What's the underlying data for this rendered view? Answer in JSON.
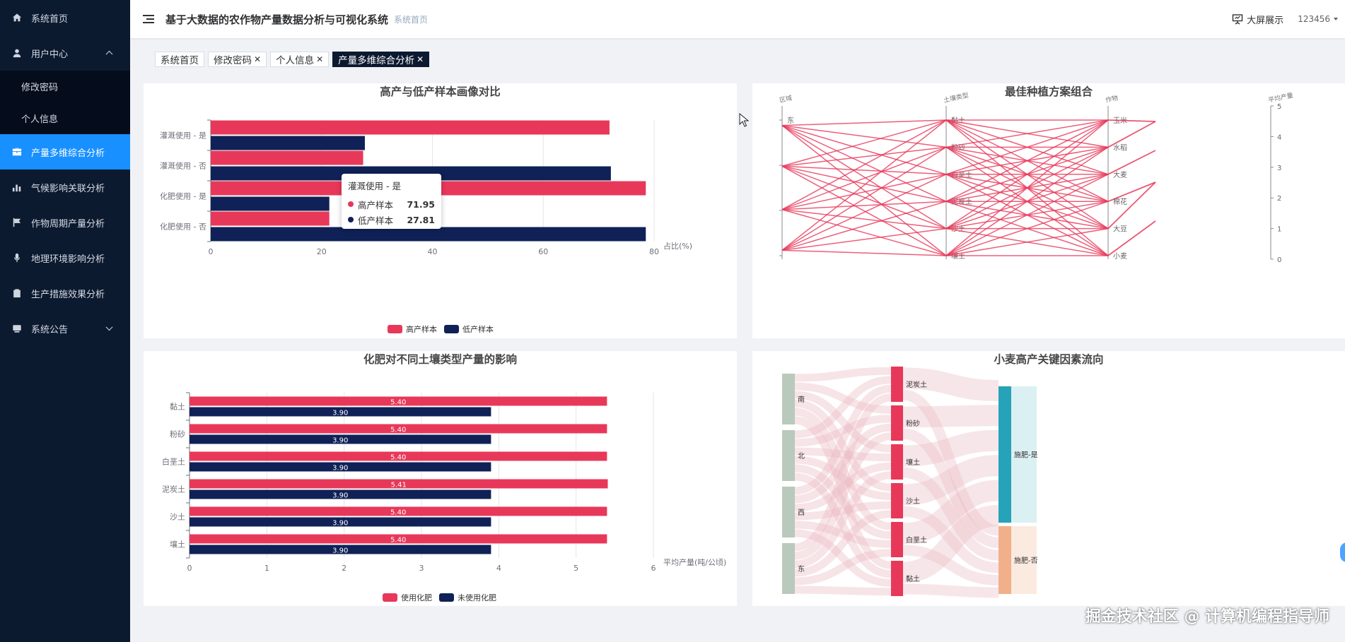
{
  "app": {
    "title": "基于大数据的农作物产量数据分析与可视化系统",
    "breadcrumb": "系统首页"
  },
  "header": {
    "big_screen_label": "大屏展示",
    "username": "123456"
  },
  "sidebar": {
    "items": [
      {
        "label": "系统首页",
        "icon": "home-icon"
      },
      {
        "label": "用户中心",
        "icon": "user-icon",
        "expanded": true,
        "children": [
          {
            "label": "修改密码"
          },
          {
            "label": "个人信息"
          }
        ]
      },
      {
        "label": "产量多维综合分析",
        "icon": "briefcase-icon",
        "active": true
      },
      {
        "label": "气候影响关联分析",
        "icon": "bar-chart-icon"
      },
      {
        "label": "作物周期产量分析",
        "icon": "flag-icon"
      },
      {
        "label": "地理环境影响分析",
        "icon": "microphone-icon"
      },
      {
        "label": "生产措施效果分析",
        "icon": "clipboard-icon"
      },
      {
        "label": "系统公告",
        "icon": "announcement-icon"
      }
    ]
  },
  "tabs": [
    {
      "label": "系统首页",
      "closable": false,
      "active": false
    },
    {
      "label": "修改密码",
      "closable": true,
      "active": false
    },
    {
      "label": "个人信息",
      "closable": true,
      "active": false
    },
    {
      "label": "产量多维综合分析",
      "closable": true,
      "active": true
    }
  ],
  "colors": {
    "red": "#e8385a",
    "navy": "#0f2156",
    "sidebar_bg": "#0c1a30",
    "active_blue": "#1890ff"
  },
  "charts": {
    "c1": {
      "title": "高产与低产样本画像对比",
      "tooltip": {
        "title": "灌溉使用 - 是",
        "rows": [
          {
            "name": "高产样本",
            "value": "71.95"
          },
          {
            "name": "低产样本",
            "value": "27.81"
          }
        ]
      }
    },
    "c2": {
      "title": "最佳种植方案组合"
    },
    "c3": {
      "title": "化肥对不同土壤类型产量的影响"
    },
    "c4": {
      "title": "小麦高产关键因素流向"
    }
  },
  "chart_data": [
    {
      "type": "bar",
      "orientation": "horizontal",
      "title": "高产与低产样本画像对比",
      "categories": [
        "灌溉使用 - 是",
        "灌溉使用 - 否",
        "化肥使用 - 是",
        "化肥使用 - 否"
      ],
      "series": [
        {
          "name": "高产样本",
          "values": [
            71.95,
            27.5,
            78.5,
            21.4
          ]
        },
        {
          "name": "低产样本",
          "values": [
            27.81,
            72.2,
            21.4,
            78.5
          ]
        }
      ],
      "xlabel": "占比(%)",
      "x_ticks": [
        "0",
        "20",
        "40",
        "60",
        "80"
      ],
      "xlim": [
        0,
        80
      ],
      "legend": "bottom-center"
    },
    {
      "type": "parallel",
      "title": "最佳种植方案组合",
      "axes": [
        {
          "name": "区域",
          "labels": [
            "东",
            "",
            "",
            ""
          ]
        },
        {
          "name": "土壤类型",
          "labels": [
            "黏土",
            "粉砂",
            "白垩土",
            "泥炭土",
            "沙土",
            "壤土"
          ]
        },
        {
          "name": "作物",
          "labels": [
            "玉米",
            "水稻",
            "大麦",
            "棉花",
            "大豆",
            "小麦"
          ]
        },
        {
          "name": "平均产量",
          "ticks": [
            "0",
            "1",
            "2",
            "3",
            "4",
            "5"
          ],
          "range": [
            0,
            5
          ]
        }
      ]
    },
    {
      "type": "bar",
      "orientation": "horizontal",
      "title": "化肥对不同土壤类型产量的影响",
      "categories": [
        "黏土",
        "粉砂",
        "白垩土",
        "泥炭土",
        "沙土",
        "壤土"
      ],
      "series": [
        {
          "name": "使用化肥",
          "values": [
            5.4,
            5.4,
            5.4,
            5.41,
            5.4,
            5.4
          ],
          "labels": [
            "5.40",
            "5.40",
            "5.40",
            "5.41",
            "5.40",
            "5.40"
          ]
        },
        {
          "name": "未使用化肥",
          "values": [
            3.9,
            3.9,
            3.9,
            3.9,
            3.9,
            3.9
          ],
          "labels": [
            "3.90",
            "3.90",
            "3.90",
            "3.90",
            "3.90",
            "3.90"
          ]
        }
      ],
      "xlabel": "平均产量(吨/公顷)",
      "x_ticks": [
        "0",
        "1",
        "2",
        "3",
        "4",
        "5",
        "6"
      ],
      "xlim": [
        0,
        6
      ],
      "legend": "bottom-center"
    },
    {
      "type": "sankey",
      "title": "小麦高产关键因素流向",
      "levels": [
        [
          "南",
          "北",
          "西",
          "东"
        ],
        [
          "泥炭土",
          "粉砂",
          "壤土",
          "沙土",
          "白垩土",
          "黏土"
        ],
        [
          "施肥-是",
          "施肥-否"
        ]
      ]
    }
  ],
  "watermark": "掘金技术社区 @ 计算机编程指导师"
}
